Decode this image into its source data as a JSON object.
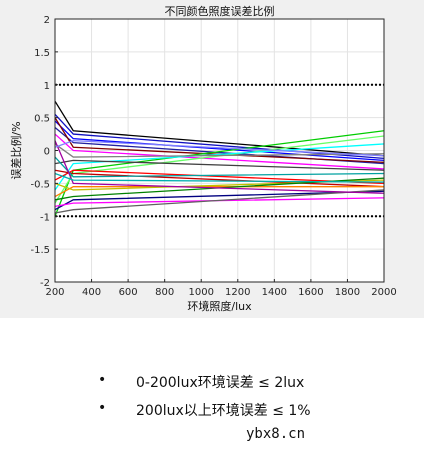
{
  "chart_data": {
    "type": "line",
    "title": "不同颜色照度误差比例",
    "xlabel": "环境照度/lux",
    "ylabel": "误差比例/%",
    "xlim": [
      200,
      2000
    ],
    "ylim": [
      -2,
      2
    ],
    "x_ticks": [
      "200",
      "400",
      "600",
      "800",
      "1000",
      "1200",
      "1400",
      "1600",
      "1800",
      "2000"
    ],
    "y_ticks": [
      "-2",
      "-1.5",
      "-1",
      "-0.5",
      "0",
      "0.5",
      "1",
      "1.5",
      "2"
    ],
    "grid": true,
    "x": [
      200,
      300,
      2000
    ],
    "series": [
      {
        "color": "#000000",
        "values": [
          0.75,
          0.3,
          -0.08
        ]
      },
      {
        "color": "#1010c0",
        "values": [
          0.55,
          0.25,
          -0.12
        ]
      },
      {
        "color": "#0000ff",
        "values": [
          0.45,
          0.18,
          -0.15
        ]
      },
      {
        "color": "#2020a0",
        "values": [
          0.35,
          0.12,
          -0.2
        ]
      },
      {
        "color": "#800000",
        "values": [
          0.5,
          0.05,
          -0.18
        ]
      },
      {
        "color": "#ff00ff",
        "values": [
          0.25,
          0.0,
          -0.28
        ]
      },
      {
        "color": "#00cc00",
        "values": [
          -1.0,
          -0.3,
          0.3
        ]
      },
      {
        "color": "#66ff66",
        "values": [
          -0.8,
          -0.35,
          0.22
        ]
      },
      {
        "color": "#00ffff",
        "values": [
          -0.6,
          -0.2,
          0.1
        ]
      },
      {
        "color": "#808080",
        "values": [
          0.1,
          -0.1,
          -0.05
        ]
      },
      {
        "color": "#404040",
        "values": [
          -0.2,
          -0.15,
          -0.3
        ]
      },
      {
        "color": "#ff0000",
        "values": [
          -0.45,
          -0.3,
          -0.5
        ]
      },
      {
        "color": "#c00000",
        "values": [
          -0.3,
          -0.35,
          -0.55
        ]
      },
      {
        "color": "#00a0a0",
        "values": [
          -0.1,
          -0.4,
          -0.35
        ]
      },
      {
        "color": "#ff8000",
        "values": [
          -0.7,
          -0.55,
          -0.55
        ]
      },
      {
        "color": "#c0c000",
        "values": [
          -0.5,
          -0.6,
          -0.45
        ]
      },
      {
        "color": "#008000",
        "values": [
          -0.75,
          -0.7,
          -0.42
        ]
      },
      {
        "color": "#000080",
        "values": [
          -0.9,
          -0.75,
          -0.62
        ]
      },
      {
        "color": "#ff00ff",
        "values": [
          -0.85,
          -0.8,
          -0.72
        ]
      },
      {
        "color": "#606060",
        "values": [
          -0.95,
          -0.9,
          -0.6
        ]
      },
      {
        "color": "#a000a0",
        "values": [
          0.15,
          -0.5,
          -0.65
        ]
      },
      {
        "color": "#00b0b0",
        "values": [
          -0.35,
          -0.45,
          -0.48
        ]
      },
      {
        "color": "#8080ff",
        "values": [
          0.05,
          0.15,
          -0.08
        ]
      }
    ],
    "reference_lines": [
      1,
      -1
    ],
    "reference_style": "black dotted"
  },
  "bullets": [
    {
      "marker": "•",
      "text": "0-200lux环境误差 ≤ 2lux"
    },
    {
      "marker": "•",
      "text": "200lux以上环境误差 ≤ 1%"
    }
  ],
  "watermark": "ybx8.cn"
}
